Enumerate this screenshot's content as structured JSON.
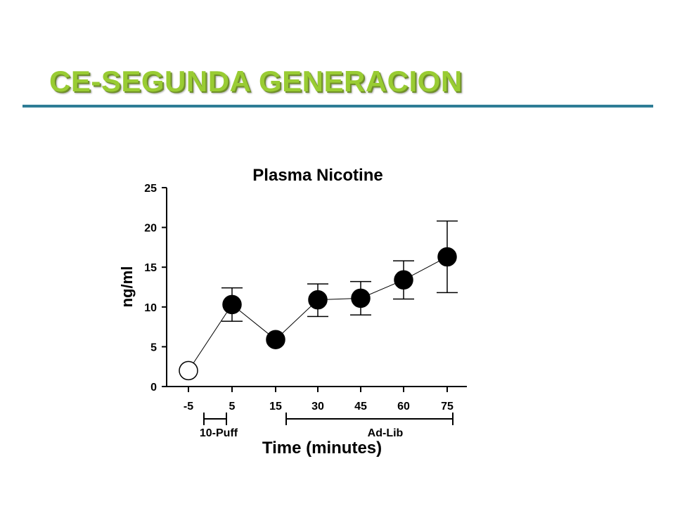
{
  "slide": {
    "title": "CE-SEGUNDA GENERACION",
    "accent_color": "#99cc33",
    "rule_color": "#2e7d96"
  },
  "chart_data": {
    "type": "line",
    "title": "Plasma Nicotine",
    "xlabel": "Time (minutes)",
    "ylabel": "ng/ml",
    "categories": [
      "-5",
      "5",
      "15",
      "30",
      "45",
      "60",
      "75"
    ],
    "ylim": [
      0,
      25
    ],
    "yticks": [
      0,
      5,
      10,
      15,
      20,
      25
    ],
    "grid": false,
    "series": [
      {
        "values": [
          2.0,
          10.3,
          5.9,
          10.9,
          11.1,
          13.4,
          16.3
        ],
        "error_low": [
          null,
          8.2,
          null,
          8.8,
          9.0,
          11.0,
          11.8
        ],
        "error_high": [
          null,
          12.4,
          null,
          12.9,
          13.2,
          15.8,
          20.8
        ],
        "marker_fill": [
          "#ffffff",
          "#000000",
          "#000000",
          "#000000",
          "#000000",
          "#000000",
          "#000000"
        ]
      }
    ],
    "phases": [
      {
        "label": "10-Puff",
        "from": "-5",
        "to": "5"
      },
      {
        "label": "Ad-Lib",
        "from": "15",
        "to": "75"
      }
    ]
  }
}
